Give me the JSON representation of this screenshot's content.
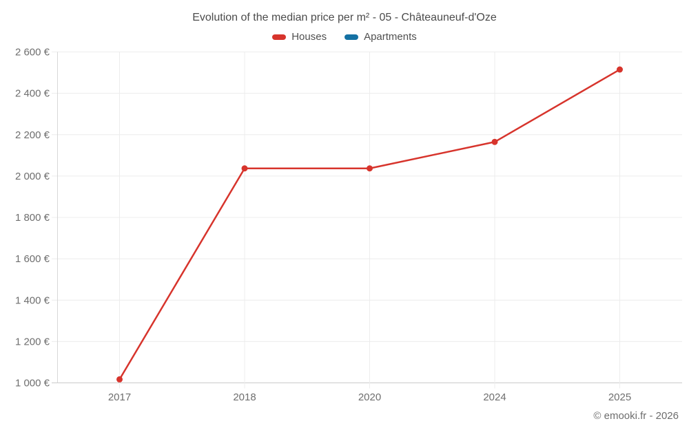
{
  "title": "Evolution of the median price per m² - 05 - Châteauneuf-d'Oze",
  "legend": {
    "items": [
      {
        "label": "Houses",
        "color": "#d7342c"
      },
      {
        "label": "Apartments",
        "color": "#1471a3"
      }
    ]
  },
  "footer": {
    "credit": "© emooki.fr - 2026"
  },
  "chart_data": {
    "type": "line",
    "title": "Evolution of the median price per m² - 05 - Châteauneuf-d'Oze",
    "categories": [
      "2017",
      "2018",
      "2020",
      "2024",
      "2025"
    ],
    "series": [
      {
        "name": "Houses",
        "color": "#d7342c",
        "values": [
          1017,
          2037,
          2037,
          2165,
          2515
        ]
      },
      {
        "name": "Apartments",
        "color": "#1471a3",
        "values": []
      }
    ],
    "y_ticks": [
      {
        "value": 1000,
        "label": "1 000 €"
      },
      {
        "value": 1200,
        "label": "1 200 €"
      },
      {
        "value": 1400,
        "label": "1 400 €"
      },
      {
        "value": 1600,
        "label": "1 600 €"
      },
      {
        "value": 1800,
        "label": "1 800 €"
      },
      {
        "value": 2000,
        "label": "2 000 €"
      },
      {
        "value": 2200,
        "label": "2 200 €"
      },
      {
        "value": 2400,
        "label": "2 400 €"
      },
      {
        "value": 2600,
        "label": "2 600 €"
      }
    ],
    "ylim": [
      1000,
      2600
    ],
    "xlabel": "",
    "ylabel": "",
    "grid": true,
    "legend_position": "top"
  }
}
